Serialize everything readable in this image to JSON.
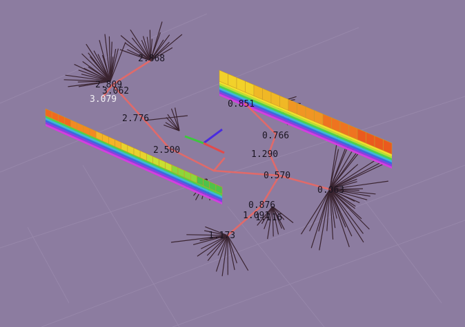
{
  "scene": {
    "background": "#8c7ca0",
    "edge_color": "#e06a6a",
    "leaf_color": "#3a2430",
    "grid_color": "#a596b7"
  },
  "labels": {
    "n1": "2.868",
    "n2": "2.809",
    "n3": "3.062",
    "n4": "3.079",
    "n5": "2.776",
    "n6": "2.500",
    "n7": "0.851",
    "n8": "0.766",
    "n9": "1.290",
    "n10": "0.570",
    "n11": "0.063",
    "n12": "0.876",
    "n13": "1.091",
    "n14": "1.116",
    "n15": "1.173"
  },
  "bars": {
    "left_colors": [
      "#f06a1e",
      "#f28a22",
      "#f4b428",
      "#e8d22e",
      "#c8e032",
      "#8ed63a",
      "#4fc24a"
    ],
    "right_colors": [
      "#f2d12a",
      "#f0b826",
      "#f09624",
      "#ee7420",
      "#ea5a1e"
    ]
  }
}
